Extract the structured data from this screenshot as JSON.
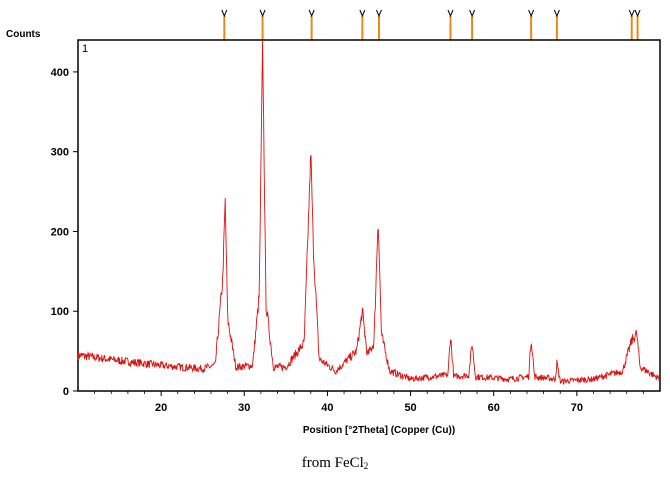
{
  "chart_data": {
    "type": "line",
    "panel_number": "1",
    "ylabel": "Counts",
    "xlabel": "Position [°2Theta] (Copper (Cu))",
    "xlim": [
      10,
      80
    ],
    "ylim": [
      0,
      440
    ],
    "x_ticks": [
      "20",
      "30",
      "40",
      "50",
      "60",
      "70"
    ],
    "x_tick_values": [
      20,
      30,
      40,
      50,
      60,
      70
    ],
    "y_ticks": [
      "0",
      "100",
      "200",
      "300",
      "400"
    ],
    "y_tick_values": [
      0,
      100,
      200,
      300,
      400
    ],
    "line_color": "#dd1111",
    "marker_color": "#e88a1a",
    "reference_positions": [
      27.6,
      32.2,
      38.1,
      44.2,
      46.2,
      54.8,
      57.4,
      64.5,
      67.6,
      76.6,
      77.3
    ],
    "series": [
      {
        "x": [
          10.0,
          15.0,
          20.0,
          25.0,
          26.5,
          27.4,
          27.7,
          28.0,
          29.0,
          31.0,
          31.8,
          32.2,
          32.6,
          33.5,
          35.0,
          37.2,
          38.0,
          38.3,
          39.0,
          41.0,
          43.5,
          44.2,
          44.8,
          45.6,
          46.1,
          46.5,
          47.5,
          50.0,
          54.5,
          54.8,
          55.2,
          57.0,
          57.4,
          57.8,
          62.0,
          64.2,
          64.5,
          64.9,
          67.4,
          67.6,
          68.0,
          72.0,
          75.5,
          76.6,
          77.2,
          77.6,
          80.0
        ],
        "y": [
          45,
          38,
          32,
          28,
          32,
          140,
          238,
          90,
          30,
          32,
          120,
          440,
          110,
          30,
          30,
          60,
          300,
          180,
          40,
          25,
          50,
          100,
          45,
          60,
          218,
          70,
          25,
          15,
          20,
          70,
          18,
          20,
          60,
          18,
          15,
          18,
          67,
          18,
          15,
          35,
          12,
          15,
          25,
          63,
          72,
          30,
          15
        ]
      }
    ]
  },
  "caption": {
    "prefix": "from FeCl",
    "subscript": "2"
  }
}
